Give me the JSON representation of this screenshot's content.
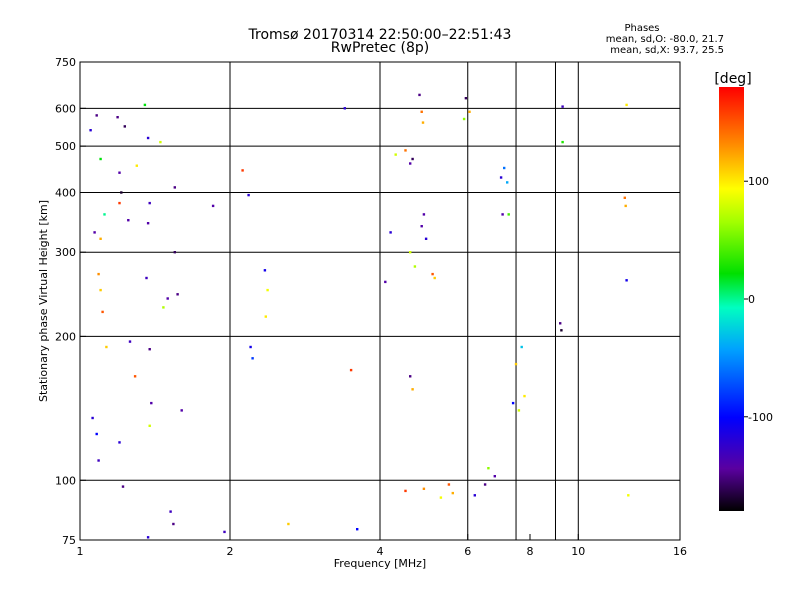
{
  "chart_data": {
    "type": "scatter",
    "title": "Tromsø 20170314 22:50:00–22:51:43",
    "subtitle": "RwPretec (8p)",
    "info": {
      "heading": "Phases",
      "line1": "mean, sd,O: -80.0, 21.7",
      "line2": "mean, sd,X:  93.7, 25.5"
    },
    "xlabel": "Frequency [MHz]",
    "ylabel": "Stationary phase Virtual Height [km]",
    "x_scale": "log",
    "y_scale": "log",
    "xlim": [
      1,
      16
    ],
    "ylim": [
      75,
      750
    ],
    "x_ticks": [
      1,
      2,
      4,
      6,
      8,
      10,
      16
    ],
    "x_tick_labels": [
      "1",
      "2",
      "4",
      "6",
      "8",
      "10",
      "16"
    ],
    "x_gridlines": [
      2,
      4,
      6,
      7.5,
      9,
      10
    ],
    "y_ticks": [
      75,
      100,
      200,
      300,
      400,
      500,
      600,
      750
    ],
    "y_tick_labels": [
      "75",
      "100",
      "200",
      "300",
      "400",
      "500",
      "600",
      "750"
    ],
    "grid": true,
    "colorbar": {
      "label": "[deg]",
      "range": [
        -180,
        180
      ],
      "ticks": [
        100,
        0,
        -100
      ],
      "tick_labels": [
        "100",
        "0",
        "-100"
      ]
    },
    "points": [
      [
        1.05,
        540,
        -120
      ],
      [
        1.08,
        580,
        -150
      ],
      [
        1.1,
        470,
        20
      ],
      [
        1.12,
        360,
        0
      ],
      [
        1.1,
        320,
        120
      ],
      [
        1.07,
        330,
        -140
      ],
      [
        1.09,
        270,
        130
      ],
      [
        1.1,
        250,
        110
      ],
      [
        1.11,
        225,
        150
      ],
      [
        1.13,
        190,
        110
      ],
      [
        1.06,
        135,
        -120
      ],
      [
        1.08,
        125,
        -100
      ],
      [
        1.09,
        110,
        -130
      ],
      [
        1.19,
        575,
        -150
      ],
      [
        1.2,
        440,
        -140
      ],
      [
        1.21,
        400,
        -170
      ],
      [
        1.2,
        380,
        160
      ],
      [
        1.23,
        550,
        -160
      ],
      [
        1.25,
        350,
        -140
      ],
      [
        1.26,
        195,
        -130
      ],
      [
        1.29,
        165,
        150
      ],
      [
        1.2,
        120,
        -120
      ],
      [
        1.22,
        97,
        -150
      ],
      [
        1.3,
        455,
        100
      ],
      [
        1.35,
        610,
        20
      ],
      [
        1.37,
        520,
        -120
      ],
      [
        1.38,
        380,
        -130
      ],
      [
        1.37,
        345,
        -140
      ],
      [
        1.36,
        265,
        -130
      ],
      [
        1.38,
        188,
        -150
      ],
      [
        1.39,
        145,
        -140
      ],
      [
        1.38,
        130,
        80
      ],
      [
        1.37,
        76,
        -120
      ],
      [
        1.45,
        510,
        80
      ],
      [
        1.5,
        240,
        -140
      ],
      [
        1.47,
        230,
        70
      ],
      [
        1.55,
        410,
        -150
      ],
      [
        1.55,
        300,
        -160
      ],
      [
        1.57,
        245,
        -150
      ],
      [
        1.52,
        86,
        -130
      ],
      [
        1.54,
        81,
        -150
      ],
      [
        1.6,
        140,
        -140
      ],
      [
        1.85,
        375,
        -140
      ],
      [
        1.95,
        78,
        -130
      ],
      [
        2.12,
        445,
        160
      ],
      [
        2.18,
        395,
        -120
      ],
      [
        2.2,
        190,
        -110
      ],
      [
        2.22,
        180,
        -80
      ],
      [
        2.35,
        275,
        -110
      ],
      [
        2.38,
        250,
        90
      ],
      [
        2.36,
        220,
        100
      ],
      [
        2.62,
        81,
        110
      ],
      [
        3.4,
        600,
        -120
      ],
      [
        3.5,
        170,
        160
      ],
      [
        3.6,
        79,
        -100
      ],
      [
        4.3,
        480,
        80
      ],
      [
        4.5,
        490,
        140
      ],
      [
        4.6,
        460,
        -140
      ],
      [
        4.65,
        470,
        -160
      ],
      [
        4.8,
        640,
        -150
      ],
      [
        4.85,
        590,
        140
      ],
      [
        4.88,
        560,
        120
      ],
      [
        5.95,
        630,
        -160
      ],
      [
        6.05,
        590,
        120
      ],
      [
        5.9,
        570,
        60
      ],
      [
        7.1,
        450,
        -60
      ],
      [
        7.2,
        420,
        -40
      ],
      [
        7.0,
        430,
        -120
      ],
      [
        7.05,
        360,
        -140
      ],
      [
        7.25,
        360,
        40
      ],
      [
        9.3,
        605,
        -130
      ],
      [
        9.3,
        510,
        30
      ],
      [
        12.5,
        610,
        100
      ],
      [
        12.4,
        390,
        140
      ],
      [
        12.45,
        375,
        120
      ],
      [
        12.5,
        262,
        -110
      ],
      [
        9.2,
        213,
        -150
      ],
      [
        9.25,
        206,
        -170
      ],
      [
        12.6,
        93,
        90
      ],
      [
        4.6,
        165,
        -150
      ],
      [
        4.65,
        155,
        120
      ],
      [
        4.9,
        360,
        -140
      ],
      [
        4.85,
        340,
        -140
      ],
      [
        4.95,
        320,
        -120
      ],
      [
        4.6,
        300,
        80
      ],
      [
        4.7,
        280,
        70
      ],
      [
        5.1,
        270,
        150
      ],
      [
        5.15,
        265,
        110
      ],
      [
        4.2,
        330,
        -120
      ],
      [
        4.1,
        260,
        -140
      ],
      [
        7.4,
        145,
        -100
      ],
      [
        7.6,
        140,
        80
      ],
      [
        7.8,
        150,
        100
      ],
      [
        7.5,
        175,
        110
      ],
      [
        7.7,
        190,
        -30
      ],
      [
        5.5,
        98,
        150
      ],
      [
        5.6,
        94,
        120
      ],
      [
        5.3,
        92,
        90
      ],
      [
        4.9,
        96,
        130
      ],
      [
        4.5,
        95,
        160
      ],
      [
        6.2,
        93,
        -120
      ],
      [
        6.5,
        98,
        -150
      ],
      [
        6.8,
        102,
        -140
      ],
      [
        6.6,
        106,
        60
      ]
    ]
  }
}
